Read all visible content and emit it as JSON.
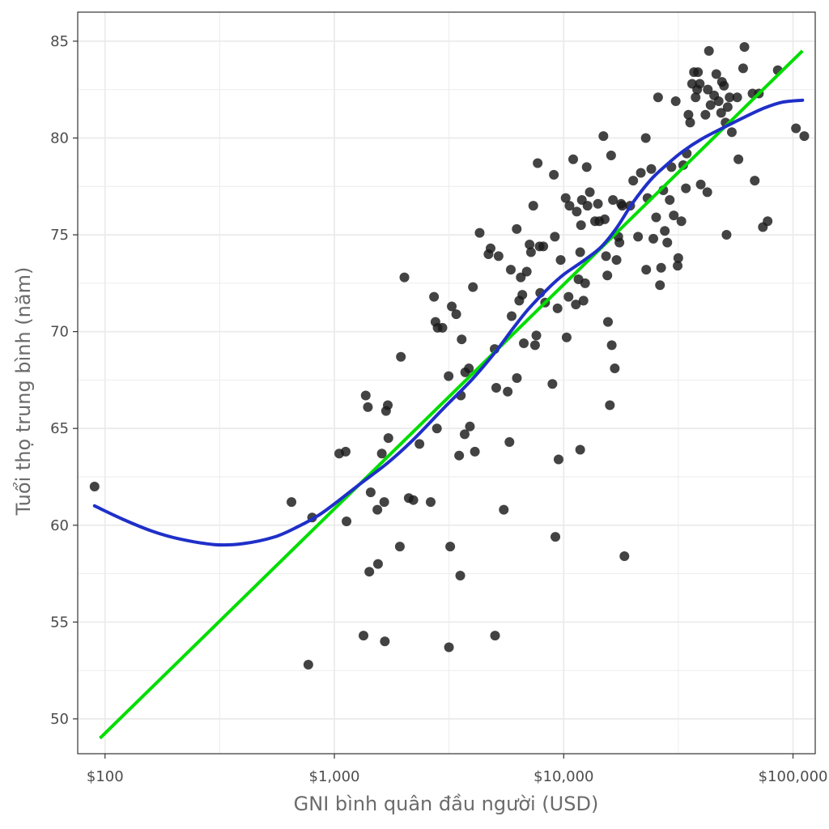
{
  "chart_data": {
    "type": "scatter",
    "title": "",
    "xlabel": "GNI bình quân đầu người (USD)",
    "ylabel": "Tuổi thọ trung bình (năm)",
    "x_scale": "log10",
    "xlim": [
      76,
      125000
    ],
    "ylim": [
      48.2,
      86.5
    ],
    "x_ticks": [
      {
        "value": 100,
        "label": "$100"
      },
      {
        "value": 1000,
        "label": "$1,000"
      },
      {
        "value": 10000,
        "label": "$10,000"
      },
      {
        "value": 100000,
        "label": "$100,000"
      }
    ],
    "y_ticks": [
      {
        "value": 50,
        "label": "50"
      },
      {
        "value": 55,
        "label": "55"
      },
      {
        "value": 60,
        "label": "60"
      },
      {
        "value": 65,
        "label": "65"
      },
      {
        "value": 70,
        "label": "70"
      },
      {
        "value": 75,
        "label": "75"
      },
      {
        "value": 80,
        "label": "80"
      },
      {
        "value": 85,
        "label": "85"
      }
    ],
    "grid": true,
    "legend": "none",
    "colors": {
      "points": "#1a1a1a",
      "linear_fit": "#00dd00",
      "smooth_fit": "#1f2fc8",
      "grid": "#ebebeb",
      "border": "#333333"
    },
    "points": [
      [
        90,
        62.0
      ],
      [
        650,
        61.2
      ],
      [
        770,
        52.8
      ],
      [
        800,
        60.4
      ],
      [
        1050,
        63.7
      ],
      [
        1120,
        63.8
      ],
      [
        1130,
        60.2
      ],
      [
        1340,
        54.3
      ],
      [
        1370,
        66.7
      ],
      [
        1400,
        66.1
      ],
      [
        1420,
        57.6
      ],
      [
        1440,
        61.7
      ],
      [
        1540,
        60.8
      ],
      [
        1550,
        58.0
      ],
      [
        1610,
        63.7
      ],
      [
        1650,
        61.2
      ],
      [
        1660,
        54.0
      ],
      [
        1680,
        65.9
      ],
      [
        1710,
        66.2
      ],
      [
        1720,
        64.5
      ],
      [
        1930,
        58.9
      ],
      [
        1950,
        68.7
      ],
      [
        2020,
        72.8
      ],
      [
        2110,
        61.4
      ],
      [
        2210,
        61.3
      ],
      [
        2350,
        64.2
      ],
      [
        2630,
        61.2
      ],
      [
        2720,
        71.8
      ],
      [
        2760,
        70.5
      ],
      [
        2800,
        65.0
      ],
      [
        2820,
        70.2
      ],
      [
        2960,
        70.2
      ],
      [
        3150,
        67.7
      ],
      [
        3160,
        53.7
      ],
      [
        3200,
        58.9
      ],
      [
        3250,
        71.3
      ],
      [
        3400,
        70.9
      ],
      [
        3500,
        63.6
      ],
      [
        3540,
        57.4
      ],
      [
        3560,
        66.7
      ],
      [
        3590,
        69.6
      ],
      [
        3700,
        64.7
      ],
      [
        3720,
        67.9
      ],
      [
        3860,
        68.1
      ],
      [
        3900,
        65.1
      ],
      [
        4020,
        72.3
      ],
      [
        4100,
        63.8
      ],
      [
        4300,
        75.1
      ],
      [
        4700,
        74.0
      ],
      [
        4800,
        74.3
      ],
      [
        5000,
        69.1
      ],
      [
        5020,
        54.3
      ],
      [
        5080,
        67.1
      ],
      [
        5200,
        73.9
      ],
      [
        5480,
        60.8
      ],
      [
        5700,
        66.9
      ],
      [
        5800,
        64.3
      ],
      [
        5880,
        73.2
      ],
      [
        5930,
        70.8
      ],
      [
        6240,
        75.3
      ],
      [
        6250,
        67.6
      ],
      [
        6400,
        71.6
      ],
      [
        6500,
        72.8
      ],
      [
        6600,
        71.9
      ],
      [
        6700,
        69.4
      ],
      [
        6900,
        73.1
      ],
      [
        7100,
        74.5
      ],
      [
        7200,
        74.1
      ],
      [
        7370,
        76.5
      ],
      [
        7500,
        69.3
      ],
      [
        7600,
        69.8
      ],
      [
        7700,
        78.7
      ],
      [
        7850,
        74.4
      ],
      [
        7900,
        72.0
      ],
      [
        8150,
        74.4
      ],
      [
        8300,
        71.5
      ],
      [
        8930,
        67.3
      ],
      [
        9060,
        78.1
      ],
      [
        9150,
        74.9
      ],
      [
        9200,
        59.4
      ],
      [
        9400,
        71.2
      ],
      [
        9500,
        63.4
      ],
      [
        9700,
        73.7
      ],
      [
        10200,
        76.9
      ],
      [
        10300,
        69.7
      ],
      [
        10500,
        71.8
      ],
      [
        10600,
        76.5
      ],
      [
        11000,
        78.9
      ],
      [
        11300,
        71.4
      ],
      [
        11400,
        76.2
      ],
      [
        11600,
        72.7
      ],
      [
        11800,
        63.9
      ],
      [
        11800,
        74.1
      ],
      [
        11900,
        75.5
      ],
      [
        12000,
        76.8
      ],
      [
        12200,
        71.6
      ],
      [
        12400,
        72.5
      ],
      [
        12600,
        78.5
      ],
      [
        12700,
        76.5
      ],
      [
        13000,
        77.2
      ],
      [
        13700,
        75.7
      ],
      [
        14100,
        76.6
      ],
      [
        14300,
        75.7
      ],
      [
        14900,
        80.1
      ],
      [
        15100,
        75.8
      ],
      [
        15300,
        73.9
      ],
      [
        15500,
        72.9
      ],
      [
        15600,
        70.5
      ],
      [
        15900,
        66.2
      ],
      [
        16100,
        79.1
      ],
      [
        16200,
        69.3
      ],
      [
        16400,
        76.8
      ],
      [
        16700,
        68.1
      ],
      [
        17000,
        73.7
      ],
      [
        17300,
        74.9
      ],
      [
        17500,
        74.6
      ],
      [
        17800,
        76.6
      ],
      [
        18000,
        76.5
      ],
      [
        18400,
        58.4
      ],
      [
        19500,
        76.5
      ],
      [
        20100,
        77.8
      ],
      [
        21100,
        74.9
      ],
      [
        21700,
        78.2
      ],
      [
        22800,
        80.0
      ],
      [
        22900,
        73.2
      ],
      [
        23200,
        76.9
      ],
      [
        24100,
        78.4
      ],
      [
        24600,
        74.8
      ],
      [
        25300,
        75.9
      ],
      [
        25800,
        82.1
      ],
      [
        26300,
        72.4
      ],
      [
        26600,
        73.3
      ],
      [
        27200,
        77.3
      ],
      [
        27600,
        75.2
      ],
      [
        28300,
        74.6
      ],
      [
        29000,
        76.8
      ],
      [
        29500,
        78.5
      ],
      [
        30200,
        76.0
      ],
      [
        30800,
        81.9
      ],
      [
        31400,
        73.4
      ],
      [
        31600,
        73.8
      ],
      [
        32600,
        75.7
      ],
      [
        33200,
        78.6
      ],
      [
        34100,
        77.4
      ],
      [
        34400,
        79.2
      ],
      [
        35000,
        81.2
      ],
      [
        35600,
        80.8
      ],
      [
        36300,
        82.8
      ],
      [
        37000,
        83.4
      ],
      [
        37600,
        82.1
      ],
      [
        38200,
        82.5
      ],
      [
        38500,
        83.4
      ],
      [
        39200,
        82.8
      ],
      [
        39600,
        77.6
      ],
      [
        41500,
        81.2
      ],
      [
        42300,
        77.2
      ],
      [
        42500,
        82.5
      ],
      [
        43000,
        84.5
      ],
      [
        43700,
        81.7
      ],
      [
        45300,
        82.2
      ],
      [
        46300,
        83.3
      ],
      [
        47400,
        81.9
      ],
      [
        48600,
        81.3
      ],
      [
        49000,
        82.9
      ],
      [
        50000,
        82.7
      ],
      [
        50800,
        80.8
      ],
      [
        51300,
        75.0
      ],
      [
        51900,
        81.6
      ],
      [
        52900,
        82.1
      ],
      [
        54100,
        80.3
      ],
      [
        57100,
        82.1
      ],
      [
        57800,
        78.9
      ],
      [
        60600,
        83.6
      ],
      [
        61400,
        84.7
      ],
      [
        66600,
        82.3
      ],
      [
        68100,
        77.8
      ],
      [
        71000,
        82.3
      ],
      [
        73900,
        75.4
      ],
      [
        77500,
        75.7
      ],
      [
        85800,
        83.5
      ],
      [
        103000,
        80.5
      ],
      [
        112000,
        80.1
      ]
    ],
    "series": [
      {
        "kind": "linear-fit",
        "x": [
          95,
          110000
        ],
        "y": [
          49.0,
          84.5
        ]
      },
      {
        "kind": "loess-fit",
        "x": [
          90,
          120,
          160,
          210,
          300,
          400,
          550,
          700,
          850,
          1000,
          1300,
          1700,
          2200,
          3000,
          4000,
          5000,
          6000,
          7000,
          8500,
          10000,
          12000,
          14500,
          17000,
          20000,
          24000,
          28000,
          33000,
          40000,
          50000,
          62000,
          75000,
          90000,
          110000
        ],
        "y": [
          61.0,
          60.3,
          59.7,
          59.3,
          59.0,
          59.05,
          59.4,
          59.95,
          60.5,
          61.1,
          62.15,
          63.2,
          64.4,
          66.05,
          67.55,
          68.9,
          70.15,
          71.15,
          72.2,
          72.95,
          73.6,
          74.35,
          75.35,
          76.65,
          77.85,
          78.6,
          79.3,
          79.95,
          80.55,
          81.1,
          81.55,
          81.85,
          81.95
        ]
      }
    ]
  }
}
